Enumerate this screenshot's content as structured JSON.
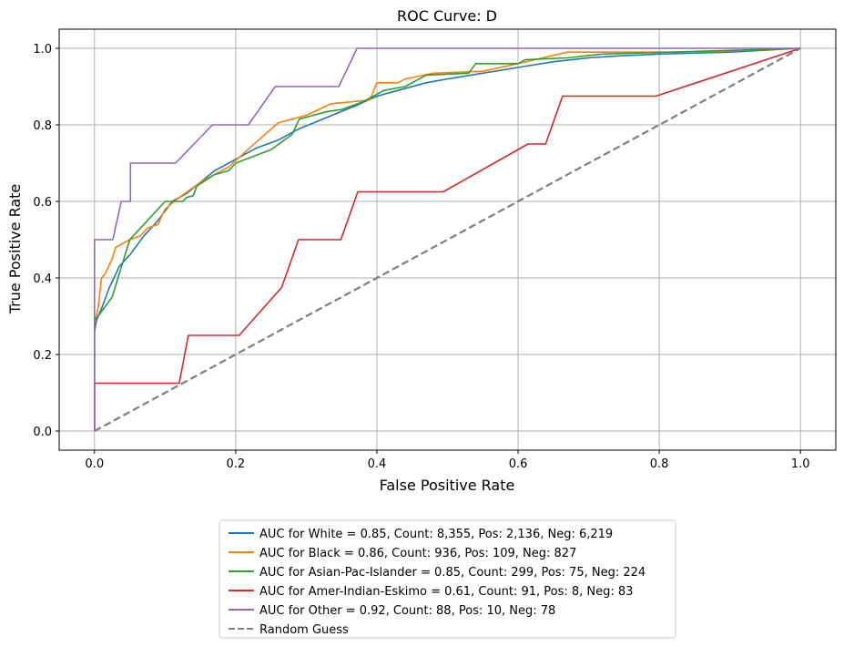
{
  "chart_data": {
    "type": "line",
    "title": "ROC Curve: D",
    "xlabel": "False Positive Rate",
    "ylabel": "True Positive Rate",
    "xlim": [
      -0.05,
      1.05
    ],
    "ylim": [
      -0.05,
      1.05
    ],
    "xticks": [
      "0.0",
      "0.2",
      "0.4",
      "0.6",
      "0.8",
      "1.0"
    ],
    "yticks": [
      "0.0",
      "0.2",
      "0.4",
      "0.6",
      "0.8",
      "1.0"
    ],
    "xtick_values": [
      0,
      0.2,
      0.4,
      0.6,
      0.8,
      1.0
    ],
    "ytick_values": [
      0,
      0.2,
      0.4,
      0.6,
      0.8,
      1.0
    ],
    "grid": true,
    "legend_position": "below",
    "series": [
      {
        "name": "AUC for White = 0.85, Count: 8,355, Pos: 2,136, Neg: 6,219",
        "color": "#1f77b4",
        "style": "solid",
        "points": [
          [
            0,
            0
          ],
          [
            0,
            0.26
          ],
          [
            0.003,
            0.29
          ],
          [
            0.01,
            0.32
          ],
          [
            0.02,
            0.37
          ],
          [
            0.035,
            0.43
          ],
          [
            0.05,
            0.46
          ],
          [
            0.07,
            0.51
          ],
          [
            0.09,
            0.55
          ],
          [
            0.11,
            0.6
          ],
          [
            0.13,
            0.62
          ],
          [
            0.15,
            0.65
          ],
          [
            0.17,
            0.68
          ],
          [
            0.2,
            0.71
          ],
          [
            0.23,
            0.74
          ],
          [
            0.26,
            0.76
          ],
          [
            0.29,
            0.79
          ],
          [
            0.33,
            0.82
          ],
          [
            0.37,
            0.85
          ],
          [
            0.4,
            0.875
          ],
          [
            0.43,
            0.89
          ],
          [
            0.47,
            0.91
          ],
          [
            0.5,
            0.92
          ],
          [
            0.55,
            0.935
          ],
          [
            0.6,
            0.95
          ],
          [
            0.65,
            0.965
          ],
          [
            0.7,
            0.975
          ],
          [
            0.74,
            0.98
          ],
          [
            0.8,
            0.985
          ],
          [
            0.9,
            0.99
          ],
          [
            1.0,
            1.0
          ]
        ]
      },
      {
        "name": "AUC for Black = 0.86, Count: 936, Pos: 109, Neg: 827",
        "color": "#ff7f0e",
        "style": "solid",
        "points": [
          [
            0,
            0
          ],
          [
            0,
            0.28
          ],
          [
            0.005,
            0.32
          ],
          [
            0.01,
            0.4
          ],
          [
            0.015,
            0.41
          ],
          [
            0.025,
            0.45
          ],
          [
            0.03,
            0.48
          ],
          [
            0.05,
            0.5
          ],
          [
            0.065,
            0.51
          ],
          [
            0.075,
            0.53
          ],
          [
            0.09,
            0.54
          ],
          [
            0.1,
            0.58
          ],
          [
            0.12,
            0.61
          ],
          [
            0.15,
            0.65
          ],
          [
            0.19,
            0.69
          ],
          [
            0.22,
            0.74
          ],
          [
            0.26,
            0.805
          ],
          [
            0.3,
            0.825
          ],
          [
            0.335,
            0.855
          ],
          [
            0.39,
            0.865
          ],
          [
            0.4,
            0.91
          ],
          [
            0.43,
            0.91
          ],
          [
            0.44,
            0.92
          ],
          [
            0.48,
            0.935
          ],
          [
            0.55,
            0.94
          ],
          [
            0.6,
            0.96
          ],
          [
            0.67,
            0.99
          ],
          [
            0.72,
            0.99
          ],
          [
            0.85,
            0.99
          ],
          [
            1.0,
            1.0
          ]
        ]
      },
      {
        "name": "AUC for Asian-Pac-Islander = 0.85, Count: 299, Pos: 75, Neg: 224",
        "color": "#2ca02c",
        "style": "solid",
        "points": [
          [
            0,
            0
          ],
          [
            0,
            0.29
          ],
          [
            0.005,
            0.3
          ],
          [
            0.025,
            0.35
          ],
          [
            0.05,
            0.5
          ],
          [
            0.07,
            0.54
          ],
          [
            0.1,
            0.6
          ],
          [
            0.125,
            0.6
          ],
          [
            0.13,
            0.61
          ],
          [
            0.14,
            0.615
          ],
          [
            0.145,
            0.64
          ],
          [
            0.17,
            0.67
          ],
          [
            0.19,
            0.68
          ],
          [
            0.2,
            0.7
          ],
          [
            0.25,
            0.735
          ],
          [
            0.28,
            0.775
          ],
          [
            0.29,
            0.815
          ],
          [
            0.33,
            0.835
          ],
          [
            0.35,
            0.84
          ],
          [
            0.38,
            0.86
          ],
          [
            0.41,
            0.89
          ],
          [
            0.44,
            0.9
          ],
          [
            0.47,
            0.93
          ],
          [
            0.53,
            0.935
          ],
          [
            0.54,
            0.96
          ],
          [
            0.6,
            0.96
          ],
          [
            0.61,
            0.97
          ],
          [
            0.67,
            0.975
          ],
          [
            0.72,
            0.985
          ],
          [
            1.0,
            1.0
          ]
        ]
      },
      {
        "name": "AUC for Amer-Indian-Eskimo = 0.61, Count: 91, Pos: 8, Neg: 83",
        "color": "#d62728",
        "style": "solid",
        "points": [
          [
            0,
            0
          ],
          [
            0,
            0.125
          ],
          [
            0.12,
            0.125
          ],
          [
            0.133,
            0.25
          ],
          [
            0.205,
            0.25
          ],
          [
            0.265,
            0.375
          ],
          [
            0.289,
            0.5
          ],
          [
            0.349,
            0.5
          ],
          [
            0.373,
            0.625
          ],
          [
            0.494,
            0.625
          ],
          [
            0.614,
            0.75
          ],
          [
            0.639,
            0.75
          ],
          [
            0.663,
            0.875
          ],
          [
            0.795,
            0.875
          ],
          [
            1.0,
            1.0
          ]
        ]
      },
      {
        "name": "AUC for Other = 0.92, Count: 88, Pos: 10, Neg: 78",
        "color": "#9467bd",
        "style": "solid",
        "points": [
          [
            0,
            0
          ],
          [
            0,
            0.5
          ],
          [
            0.026,
            0.5
          ],
          [
            0.038,
            0.6
          ],
          [
            0.051,
            0.6
          ],
          [
            0.051,
            0.7
          ],
          [
            0.115,
            0.7
          ],
          [
            0.167,
            0.8
          ],
          [
            0.218,
            0.8
          ],
          [
            0.256,
            0.9
          ],
          [
            0.346,
            0.9
          ],
          [
            0.372,
            1.0
          ],
          [
            1.0,
            1.0
          ]
        ]
      },
      {
        "name": "Random Guess",
        "color": "#7f7f7f",
        "style": "dashed",
        "points": [
          [
            0,
            0
          ],
          [
            1,
            1
          ]
        ]
      }
    ]
  }
}
